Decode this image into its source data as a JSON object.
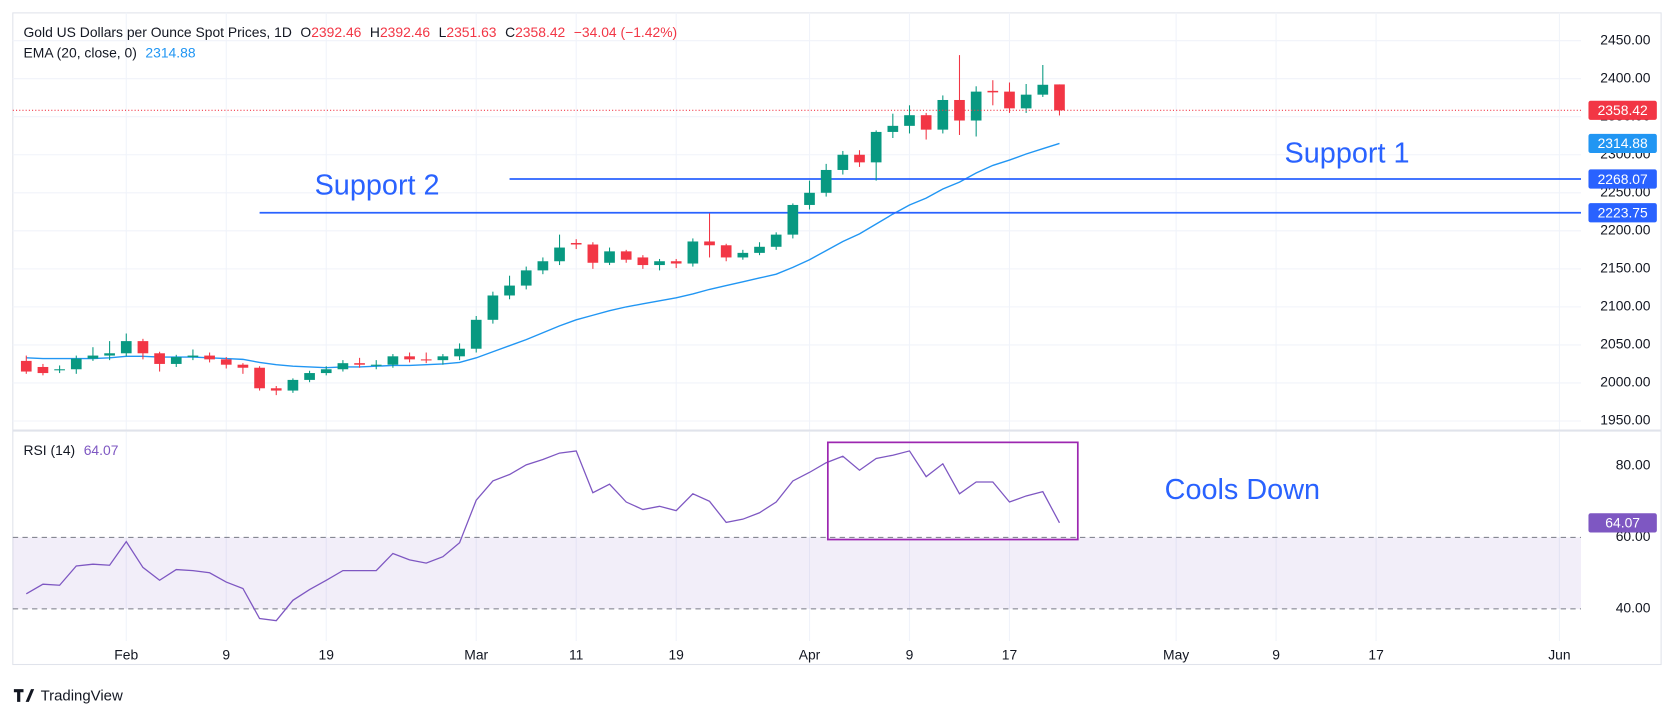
{
  "chart_data": [
    {
      "type": "candlestick",
      "title": "Gold US Dollars per Ounce Spot Prices, 1D",
      "ohlc_keys": [
        "O",
        "H",
        "L",
        "C"
      ],
      "change": "−34.04 (−1.42%)",
      "up_color": "#089981",
      "down_color": "#f23645",
      "x": [
        0,
        1,
        2,
        3,
        4,
        5,
        6,
        7,
        8,
        9,
        10,
        11,
        12,
        13,
        14,
        15,
        16,
        17,
        18,
        19,
        20,
        21,
        22,
        23,
        24,
        25,
        26,
        27,
        28,
        29,
        30,
        31,
        32,
        33,
        34,
        35,
        36,
        37,
        38,
        39,
        40,
        41,
        42,
        43,
        44,
        45,
        46,
        47,
        48,
        49,
        50,
        51,
        52,
        53,
        54,
        55,
        56,
        57,
        58,
        59,
        60,
        61,
        62
      ],
      "open": [
        2029,
        2021,
        2017,
        2018,
        2032,
        2036,
        2039,
        2055,
        2039,
        2025,
        2034,
        2036,
        2031,
        2024,
        2020,
        1993,
        1990,
        2004,
        2013,
        2018,
        2026,
        2024,
        2024,
        2035,
        2031,
        2030,
        2035,
        2045,
        2083,
        2115,
        2128,
        2148,
        2160,
        2184,
        2182,
        2158,
        2173,
        2165,
        2155,
        2160,
        2157,
        2186,
        2181,
        2165,
        2171,
        2179,
        2195,
        2234,
        2250,
        2280,
        2300,
        2290,
        2330,
        2338,
        2352,
        2333,
        2372,
        2345,
        2384,
        2383,
        2361,
        2379,
        2392.46
      ],
      "high": [
        2036,
        2025,
        2023,
        2036,
        2047,
        2055,
        2065,
        2058,
        2041,
        2037,
        2044,
        2040,
        2034,
        2026,
        2022,
        1996,
        2006,
        2016,
        2022,
        2030,
        2033,
        2030,
        2038,
        2040,
        2040,
        2038,
        2052,
        2088,
        2120,
        2141,
        2153,
        2165,
        2195,
        2189,
        2185,
        2178,
        2175,
        2168,
        2163,
        2163,
        2190,
        2223,
        2183,
        2175,
        2185,
        2198,
        2236,
        2266,
        2288,
        2305,
        2306,
        2332,
        2354,
        2365,
        2355,
        2378,
        2431,
        2390,
        2398,
        2395,
        2393,
        2418,
        2392.46
      ],
      "low": [
        2012,
        2010,
        2013,
        2012,
        2029,
        2030,
        2035,
        2031,
        2015,
        2021,
        2030,
        2027,
        2019,
        2012,
        1990,
        1984,
        1987,
        2001,
        2010,
        2015,
        2020,
        2018,
        2020,
        2027,
        2026,
        2024,
        2030,
        2040,
        2078,
        2110,
        2123,
        2143,
        2155,
        2176,
        2150,
        2155,
        2158,
        2150,
        2148,
        2151,
        2153,
        2165,
        2160,
        2162,
        2168,
        2175,
        2190,
        2228,
        2245,
        2274,
        2284,
        2266,
        2322,
        2328,
        2320,
        2328,
        2326,
        2324,
        2365,
        2355,
        2355,
        2376,
        2351.63
      ],
      "close": [
        2015,
        2013,
        2018,
        2032,
        2036,
        2039,
        2055,
        2039,
        2025,
        2034,
        2036,
        2031,
        2024,
        2020,
        1993,
        1990,
        2004,
        2013,
        2018,
        2026,
        2024,
        2024,
        2035,
        2031,
        2030,
        2035,
        2045,
        2083,
        2115,
        2128,
        2148,
        2160,
        2178,
        2182,
        2158,
        2173,
        2162,
        2155,
        2160,
        2157,
        2186,
        2181,
        2165,
        2171,
        2179,
        2195,
        2234,
        2250,
        2280,
        2300,
        2290,
        2330,
        2338,
        2352,
        2333,
        2372,
        2345,
        2383,
        2382,
        2361,
        2379,
        2392,
        2358.42
      ],
      "ema": {
        "name": "EMA (20, close, 0)",
        "color": "#2196f3",
        "values": [
          2033,
          2032,
          2032,
          2032,
          2032,
          2033,
          2035,
          2035,
          2034,
          2034,
          2034,
          2033,
          2032,
          2031,
          2027,
          2024,
          2022,
          2021,
          2020,
          2021,
          2021,
          2022,
          2023,
          2023,
          2024,
          2025,
          2027,
          2033,
          2041,
          2049,
          2057,
          2066,
          2075,
          2083,
          2089,
          2095,
          2100,
          2104,
          2108,
          2112,
          2117,
          2123,
          2128,
          2133,
          2138,
          2143,
          2152,
          2162,
          2174,
          2186,
          2196,
          2209,
          2222,
          2234,
          2243,
          2255,
          2264,
          2276,
          2286,
          2293,
          2301,
          2308,
          2314.88
        ]
      },
      "lines": [
        {
          "label": "Support 1",
          "value": 2268.07,
          "x_start": 29,
          "color": "#2962ff"
        },
        {
          "label": "Support 2",
          "value": 2223.75,
          "x_start": 14,
          "color": "#2962ff"
        }
      ],
      "xlim": [
        -0.8077,
        93.295
      ],
      "xticks": [
        {
          "value": 6,
          "label": "Feb"
        },
        {
          "value": 12,
          "label": "9"
        },
        {
          "value": 18,
          "label": "19"
        },
        {
          "value": 27,
          "label": "Mar"
        },
        {
          "value": 33,
          "label": "11"
        },
        {
          "value": 39,
          "label": "19"
        },
        {
          "value": 47,
          "label": "Apr"
        },
        {
          "value": 53,
          "label": "9"
        },
        {
          "value": 59,
          "label": "17"
        },
        {
          "value": 69,
          "label": "May"
        },
        {
          "value": 75,
          "label": "9"
        },
        {
          "value": 81,
          "label": "17"
        },
        {
          "value": 92,
          "label": "Jun"
        }
      ],
      "ylim": [
        1938.8,
        2486.5
      ],
      "yticks": [
        {
          "value": 1950,
          "label": "1950.00"
        },
        {
          "value": 2000,
          "label": "2000.00"
        },
        {
          "value": 2050,
          "label": "2050.00"
        },
        {
          "value": 2100,
          "label": "2100.00"
        },
        {
          "value": 2150,
          "label": "2150.00"
        },
        {
          "value": 2200,
          "label": "2200.00"
        },
        {
          "value": 2250,
          "label": "2250.00"
        },
        {
          "value": 2300,
          "label": "2300.00"
        },
        {
          "value": 2350,
          "label": "2350.00"
        },
        {
          "value": 2400,
          "label": "2400.00"
        },
        {
          "value": 2450,
          "label": "2450.00"
        }
      ],
      "grid": true
    },
    {
      "type": "line",
      "name": "RSI (14)",
      "color": "#7e57c2",
      "values": [
        44.2,
        46.9,
        46.6,
        52,
        52.5,
        52.2,
        58.8,
        51.6,
        48,
        51,
        50.7,
        50.1,
        47.5,
        45.7,
        37.3,
        36.7,
        42.4,
        45.4,
        48,
        50.7,
        50.7,
        50.7,
        55.5,
        53.7,
        52.8,
        54.6,
        58.5,
        70.4,
        75.8,
        77.6,
        80.3,
        81.8,
        83.6,
        84.2,
        72.5,
        74.9,
        69.9,
        67.8,
        68.7,
        67.5,
        72.2,
        70.1,
        64.2,
        65.1,
        66.9,
        69.9,
        75.8,
        78.2,
        80.9,
        82.7,
        78.8,
        82.1,
        83,
        84.2,
        77,
        80.6,
        72.2,
        75.5,
        75.5,
        69.9,
        71.6,
        72.8,
        64.07
      ],
      "band": [
        40,
        60
      ],
      "box": {
        "text": "Cools Down",
        "color": "#9c27b0",
        "x": [
          48.1,
          63.1
        ],
        "y": [
          59.4,
          86.6
        ]
      },
      "ylim": [
        31,
        89.6
      ],
      "yticks": [
        {
          "value": 40,
          "label": "40.00"
        },
        {
          "value": 60,
          "label": "60.00"
        },
        {
          "value": 80,
          "label": "80.00"
        }
      ]
    }
  ],
  "footer": {
    "brand": "TradingView"
  }
}
